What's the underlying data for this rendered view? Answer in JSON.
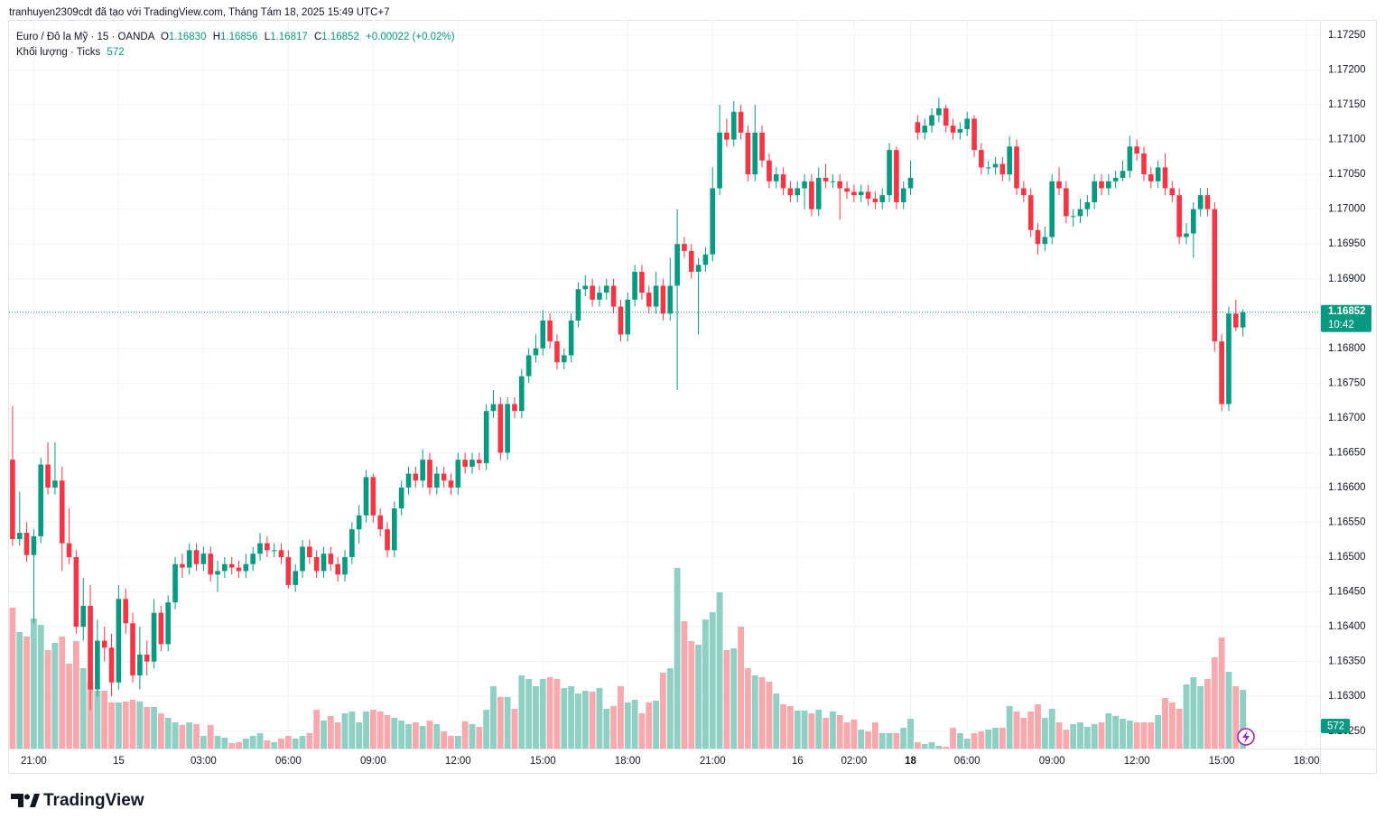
{
  "header": "tranhuyen2309cdt đã tạo với TradingView.com, Tháng Tám 18, 2025 15:49 UTC+7",
  "logo": "TradingView",
  "chart_data": {
    "type": "candlestick",
    "legend": {
      "symbol": "Euro / Đô la Mỹ · 15 · OANDA",
      "ohlc": [
        {
          "key": "O",
          "value": "1.16830"
        },
        {
          "key": "H",
          "value": "1.16856"
        },
        {
          "key": "L",
          "value": "1.16817"
        },
        {
          "key": "C",
          "value": "1.16852"
        }
      ],
      "change": "+0.00022 (+0.02%)",
      "volume_label": "Khối lượng · Ticks",
      "volume_value": "572"
    },
    "price_badge": {
      "price": "1.16852",
      "countdown": "10:42"
    },
    "up_color": "#089981",
    "down_color": "#f23645",
    "up_volume_color": "#8fcfc4",
    "down_volume_color": "#f7a9ae",
    "grid": true,
    "xlim": [
      -0.5,
      184.9
    ],
    "xticks": [
      {
        "value": 3,
        "label": "21:00"
      },
      {
        "value": 15,
        "label": "15"
      },
      {
        "value": 27,
        "label": "03:00"
      },
      {
        "value": 39,
        "label": "06:00"
      },
      {
        "value": 51,
        "label": "09:00"
      },
      {
        "value": 63,
        "label": "12:00"
      },
      {
        "value": 75,
        "label": "15:00"
      },
      {
        "value": 87,
        "label": "18:00"
      },
      {
        "value": 99,
        "label": "21:00"
      },
      {
        "value": 111,
        "label": "16"
      },
      {
        "value": 119,
        "label": "02:00"
      },
      {
        "value": 127,
        "label": "18",
        "bold": true
      },
      {
        "value": 135,
        "label": "06:00"
      },
      {
        "value": 147,
        "label": "09:00"
      },
      {
        "value": 159,
        "label": "12:00"
      },
      {
        "value": 171,
        "label": "15:00"
      },
      {
        "value": 183,
        "label": "18:00"
      }
    ],
    "ylim": [
      1.16225,
      1.17272
    ],
    "yticks": [
      {
        "value": 1.1625,
        "label": "1.16250"
      },
      {
        "value": 1.163,
        "label": "1.16300"
      },
      {
        "value": 1.1635,
        "label": "1.16350"
      },
      {
        "value": 1.164,
        "label": "1.16400"
      },
      {
        "value": 1.1645,
        "label": "1.16450"
      },
      {
        "value": 1.165,
        "label": "1.16500"
      },
      {
        "value": 1.1655,
        "label": "1.16550"
      },
      {
        "value": 1.166,
        "label": "1.16600"
      },
      {
        "value": 1.1665,
        "label": "1.16650"
      },
      {
        "value": 1.167,
        "label": "1.16700"
      },
      {
        "value": 1.1675,
        "label": "1.16750"
      },
      {
        "value": 1.168,
        "label": "1.16800"
      },
      {
        "value": 1.1685,
        "label": "1.16850"
      },
      {
        "value": 1.169,
        "label": "1.16900"
      },
      {
        "value": 1.1695,
        "label": "1.16950"
      },
      {
        "value": 1.17,
        "label": "1.17000"
      },
      {
        "value": 1.1705,
        "label": "1.17050"
      },
      {
        "value": 1.171,
        "label": "1.17100"
      },
      {
        "value": 1.1715,
        "label": "1.17150"
      },
      {
        "value": 1.172,
        "label": "1.17200"
      },
      {
        "value": 1.1725,
        "label": "1.17250"
      }
    ],
    "volume_lim": [
      0,
      7100
    ],
    "open": [
      1.1664,
      1.16526,
      1.16535,
      1.16503,
      1.1653,
      1.16633,
      1.166,
      1.1661,
      1.1652,
      1.165,
      1.164,
      1.1643,
      1.1631,
      1.1638,
      1.1637,
      1.1632,
      1.1644,
      1.16405,
      1.1633,
      1.1636,
      1.1635,
      1.1642,
      1.16375,
      1.16435,
      1.1649,
      1.16485,
      1.1651,
      1.1649,
      1.16505,
      1.16475,
      1.1648,
      1.1649,
      1.16485,
      1.1648,
      1.1649,
      1.16505,
      1.1652,
      1.1651,
      1.1651,
      1.165,
      1.1646,
      1.1648,
      1.16515,
      1.165,
      1.1648,
      1.16505,
      1.1649,
      1.16475,
      1.165,
      1.1654,
      1.1656,
      1.16615,
      1.1656,
      1.1654,
      1.1651,
      1.1657,
      1.166,
      1.1662,
      1.1661,
      1.1664,
      1.166,
      1.1662,
      1.1661,
      1.166,
      1.1664,
      1.1663,
      1.1664,
      1.16635,
      1.1671,
      1.1672,
      1.1665,
      1.1672,
      1.1671,
      1.1676,
      1.1679,
      1.168,
      1.1684,
      1.1681,
      1.1678,
      1.1679,
      1.1684,
      1.16885,
      1.1689,
      1.1687,
      1.1688,
      1.1689,
      1.1686,
      1.1682,
      1.1687,
      1.1691,
      1.1688,
      1.1686,
      1.1689,
      1.1685,
      1.1689,
      1.1695,
      1.1694,
      1.1691,
      1.1692,
      1.16935,
      1.1703,
      1.1711,
      1.171,
      1.1714,
      1.1711,
      1.1705,
      1.1711,
      1.1707,
      1.1704,
      1.1705,
      1.1703,
      1.1702,
      1.1703,
      1.1704,
      1.17,
      1.17045,
      1.1704,
      1.1704,
      1.1703,
      1.17025,
      1.1702,
      1.17025,
      1.17015,
      1.1701,
      1.1702,
      1.17085,
      1.1701,
      1.1703,
      1.17125,
      1.1711,
      1.1712,
      1.17135,
      1.17145,
      1.1712,
      1.1711,
      1.17115,
      1.1713,
      1.17085,
      1.1706,
      1.1706,
      1.17065,
      1.1705,
      1.1709,
      1.1703,
      1.1702,
      1.1697,
      1.1695,
      1.1696,
      1.1704,
      1.1703,
      1.1699,
      1.1699,
      1.17,
      1.1701,
      1.1704,
      1.1703,
      1.1704,
      1.17045,
      1.17055,
      1.1709,
      1.1708,
      1.1705,
      1.1704,
      1.1706,
      1.1703,
      1.1702,
      1.1696,
      1.16965,
      1.17,
      1.1702,
      1.17,
      1.1681,
      1.1672,
      1.1685,
      1.1683
    ],
    "high": [
      1.16717,
      1.16594,
      1.1655,
      1.1654,
      1.16643,
      1.16665,
      1.16665,
      1.1663,
      1.1657,
      1.1651,
      1.1647,
      1.1646,
      1.1641,
      1.164,
      1.1639,
      1.1646,
      1.16455,
      1.1642,
      1.164,
      1.1638,
      1.1644,
      1.1643,
      1.16445,
      1.165,
      1.16505,
      1.1652,
      1.1652,
      1.16515,
      1.16515,
      1.16495,
      1.165,
      1.165,
      1.16495,
      1.16505,
      1.16515,
      1.16535,
      1.1653,
      1.1652,
      1.1652,
      1.1651,
      1.1649,
      1.16525,
      1.16525,
      1.1651,
      1.16515,
      1.16515,
      1.165,
      1.1651,
      1.1655,
      1.16575,
      1.16625,
      1.1662,
      1.1657,
      1.1655,
      1.1658,
      1.1661,
      1.1663,
      1.1663,
      1.16655,
      1.1665,
      1.1663,
      1.1663,
      1.1662,
      1.1665,
      1.1665,
      1.1665,
      1.1665,
      1.1672,
      1.1674,
      1.1673,
      1.1673,
      1.1673,
      1.1677,
      1.168,
      1.1682,
      1.16855,
      1.1685,
      1.1682,
      1.168,
      1.1685,
      1.16895,
      1.16905,
      1.169,
      1.1689,
      1.169,
      1.169,
      1.1687,
      1.1688,
      1.1692,
      1.1692,
      1.1689,
      1.1691,
      1.169,
      1.1693,
      1.17,
      1.1696,
      1.1695,
      1.1693,
      1.16945,
      1.1706,
      1.1715,
      1.1713,
      1.17155,
      1.1715,
      1.1712,
      1.1715,
      1.1712,
      1.1708,
      1.1706,
      1.1706,
      1.1704,
      1.1704,
      1.1705,
      1.1705,
      1.1706,
      1.17065,
      1.1705,
      1.1705,
      1.1704,
      1.17035,
      1.17035,
      1.17035,
      1.17025,
      1.1703,
      1.17095,
      1.1709,
      1.1704,
      1.1707,
      1.17135,
      1.1713,
      1.17145,
      1.1716,
      1.1715,
      1.1713,
      1.17125,
      1.1714,
      1.17135,
      1.17095,
      1.1707,
      1.17075,
      1.17075,
      1.17105,
      1.171,
      1.1704,
      1.1703,
      1.1698,
      1.16975,
      1.1705,
      1.1706,
      1.1704,
      1.17,
      1.17015,
      1.1702,
      1.1705,
      1.1705,
      1.1705,
      1.17055,
      1.1707,
      1.17105,
      1.171,
      1.1709,
      1.1706,
      1.1707,
      1.1708,
      1.1704,
      1.1703,
      1.1698,
      1.1701,
      1.1703,
      1.1703,
      1.1701,
      1.1682,
      1.1686,
      1.1687,
      1.16856
    ],
    "low": [
      1.16516,
      1.16516,
      1.16493,
      1.16405,
      1.1652,
      1.1659,
      1.1659,
      1.1648,
      1.1649,
      1.1639,
      1.1638,
      1.1628,
      1.163,
      1.1635,
      1.163,
      1.1631,
      1.1639,
      1.1632,
      1.1631,
      1.1633,
      1.1634,
      1.16365,
      1.16365,
      1.16425,
      1.1647,
      1.16475,
      1.1648,
      1.1648,
      1.16465,
      1.1645,
      1.1647,
      1.16475,
      1.1647,
      1.1647,
      1.1648,
      1.16495,
      1.165,
      1.165,
      1.1649,
      1.16455,
      1.1645,
      1.1647,
      1.1649,
      1.1647,
      1.1647,
      1.1648,
      1.16465,
      1.16465,
      1.1649,
      1.1652,
      1.1655,
      1.1655,
      1.1653,
      1.165,
      1.165,
      1.1656,
      1.1659,
      1.166,
      1.166,
      1.1659,
      1.1659,
      1.166,
      1.1659,
      1.1659,
      1.1662,
      1.1662,
      1.16625,
      1.16625,
      1.167,
      1.1664,
      1.1664,
      1.167,
      1.167,
      1.1675,
      1.1678,
      1.1679,
      1.168,
      1.1677,
      1.1677,
      1.1678,
      1.1683,
      1.16875,
      1.1686,
      1.1686,
      1.1687,
      1.1685,
      1.1681,
      1.1681,
      1.1686,
      1.1687,
      1.1685,
      1.1685,
      1.1684,
      1.1684,
      1.1674,
      1.1693,
      1.169,
      1.1682,
      1.1691,
      1.16925,
      1.1702,
      1.1709,
      1.1709,
      1.171,
      1.1704,
      1.1704,
      1.1706,
      1.1703,
      1.1703,
      1.1702,
      1.1701,
      1.1701,
      1.17,
      1.1699,
      1.1699,
      1.1703,
      1.1703,
      1.16985,
      1.17015,
      1.1701,
      1.1701,
      1.17005,
      1.17,
      1.17,
      1.1701,
      1.17,
      1.17,
      1.1702,
      1.171,
      1.171,
      1.1711,
      1.17125,
      1.1711,
      1.171,
      1.171,
      1.17105,
      1.17075,
      1.1705,
      1.1705,
      1.1705,
      1.1704,
      1.1704,
      1.1702,
      1.1701,
      1.1696,
      1.16935,
      1.1694,
      1.1695,
      1.1702,
      1.1698,
      1.16975,
      1.1698,
      1.1699,
      1.17,
      1.1702,
      1.1702,
      1.1703,
      1.1704,
      1.17045,
      1.1707,
      1.1704,
      1.1703,
      1.1703,
      1.1702,
      1.1701,
      1.1695,
      1.1695,
      1.1693,
      1.1699,
      1.1699,
      1.16795,
      1.1671,
      1.1671,
      1.16825,
      1.16817
    ],
    "close": [
      1.16526,
      1.16535,
      1.16503,
      1.1653,
      1.16633,
      1.166,
      1.1661,
      1.1652,
      1.165,
      1.164,
      1.1643,
      1.1631,
      1.1638,
      1.1637,
      1.1632,
      1.1644,
      1.16405,
      1.1633,
      1.1636,
      1.1635,
      1.1642,
      1.16375,
      1.16435,
      1.1649,
      1.16485,
      1.1651,
      1.1649,
      1.16505,
      1.16475,
      1.1648,
      1.1649,
      1.16485,
      1.1648,
      1.1649,
      1.16505,
      1.1652,
      1.1651,
      1.1651,
      1.165,
      1.1646,
      1.1648,
      1.16515,
      1.165,
      1.1648,
      1.16505,
      1.1649,
      1.16475,
      1.165,
      1.1654,
      1.1656,
      1.16615,
      1.1656,
      1.1654,
      1.1651,
      1.1657,
      1.166,
      1.1662,
      1.1661,
      1.1664,
      1.166,
      1.1662,
      1.1661,
      1.166,
      1.1664,
      1.1663,
      1.1664,
      1.16635,
      1.1671,
      1.1672,
      1.1665,
      1.1672,
      1.1671,
      1.1676,
      1.1679,
      1.168,
      1.1684,
      1.1681,
      1.1678,
      1.1679,
      1.1684,
      1.16885,
      1.1689,
      1.1687,
      1.1688,
      1.1689,
      1.1686,
      1.1682,
      1.1687,
      1.1691,
      1.1688,
      1.1686,
      1.1689,
      1.1685,
      1.1689,
      1.1695,
      1.1694,
      1.1691,
      1.1692,
      1.16935,
      1.1703,
      1.1711,
      1.171,
      1.1714,
      1.1711,
      1.1705,
      1.1711,
      1.1707,
      1.1704,
      1.1705,
      1.1703,
      1.1702,
      1.1703,
      1.1704,
      1.17,
      1.17045,
      1.1704,
      1.1704,
      1.1703,
      1.17025,
      1.1702,
      1.17025,
      1.17015,
      1.1701,
      1.1702,
      1.17085,
      1.1701,
      1.1703,
      1.17045,
      1.1711,
      1.1712,
      1.17135,
      1.17145,
      1.1712,
      1.1711,
      1.17115,
      1.1713,
      1.17085,
      1.1706,
      1.1706,
      1.17065,
      1.1705,
      1.1709,
      1.1703,
      1.1702,
      1.1697,
      1.1695,
      1.1696,
      1.1704,
      1.1703,
      1.1699,
      1.1699,
      1.17,
      1.1701,
      1.1704,
      1.1703,
      1.1704,
      1.17045,
      1.17055,
      1.1709,
      1.1708,
      1.1705,
      1.1704,
      1.1706,
      1.1703,
      1.1702,
      1.1696,
      1.16965,
      1.17,
      1.1702,
      1.17,
      1.1681,
      1.1672,
      1.1685,
      1.1683,
      1.16852
    ],
    "volume": [
      1373,
      1135,
      1091,
      1267,
      1206,
      959,
      1030,
      1091,
      827,
      1047,
      783,
      651,
      563,
      563,
      449,
      449,
      458,
      475,
      458,
      405,
      405,
      343,
      299,
      255,
      229,
      255,
      238,
      123,
      229,
      123,
      106,
      53,
      62,
      97,
      123,
      150,
      79,
      62,
      97,
      123,
      97,
      123,
      150,
      378,
      273,
      317,
      255,
      343,
      361,
      255,
      361,
      378,
      361,
      326,
      299,
      273,
      238,
      255,
      220,
      273,
      238,
      167,
      123,
      123,
      264,
      238,
      211,
      378,
      607,
      502,
      502,
      387,
      713,
      678,
      607,
      678,
      695,
      678,
      590,
      607,
      537,
      563,
      554,
      590,
      387,
      414,
      607,
      449,
      475,
      343,
      449,
      466,
      739,
      783,
      1760,
      1241,
      1047,
      1012,
      1258,
      1329,
      1522,
      959,
      977,
      1188,
      783,
      713,
      695,
      651,
      537,
      431,
      414,
      370,
      370,
      343,
      378,
      299,
      361,
      326,
      255,
      282,
      185,
      167,
      255,
      150,
      150,
      150,
      202,
      290,
      62,
      44,
      62,
      26,
      18,
      202,
      150,
      97,
      150,
      167,
      185,
      202,
      202,
      414,
      361,
      299,
      361,
      431,
      299,
      387,
      255,
      185,
      238,
      255,
      211,
      238,
      255,
      343,
      317,
      290,
      273,
      255,
      255,
      255,
      326,
      493,
      449,
      387,
      625,
      695,
      607,
      678,
      889,
      1082,
      748,
      607,
      572
    ]
  }
}
